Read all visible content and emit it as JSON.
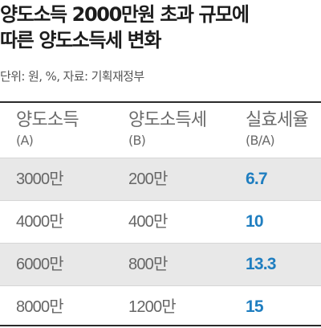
{
  "title_lines": [
    "양도소득 2000만원 초과 규모에",
    "따른 양도소득세 변화"
  ],
  "unit_note": "단위: 원, %, 자료: 기획재정부",
  "colors": {
    "accent": "#1f7ec0",
    "shade": "#e8e8e8",
    "rule": "#2a2a2a"
  },
  "chart_data": {
    "type": "table",
    "title": "양도소득 2000만원 초과 규모에 따른 양도소득세 변화",
    "columns": [
      {
        "label": "양도소득",
        "sub": "(A)"
      },
      {
        "label": "양도소득세",
        "sub": "(B)"
      },
      {
        "label": "실효세율",
        "sub": "(B/A)"
      }
    ],
    "rows": [
      [
        "3000만",
        "200만",
        "6.7"
      ],
      [
        "4000만",
        "400만",
        "10"
      ],
      [
        "6000만",
        "800만",
        "13.3"
      ],
      [
        "8000만",
        "1200만",
        "15"
      ]
    ]
  }
}
